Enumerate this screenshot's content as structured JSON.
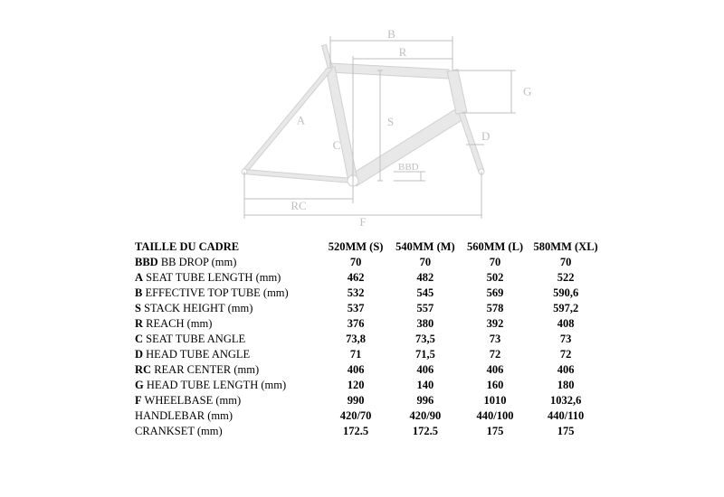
{
  "diagram": {
    "stroke": "#d0d0d0",
    "fill": "#e8e8e8",
    "dim_stroke": "#bfbfbf",
    "label_color": "#bfbfbf",
    "label_font": 13,
    "labels": {
      "A": "A",
      "B": "B",
      "C": "C",
      "D": "D",
      "F": "F",
      "G": "G",
      "R": "R",
      "S": "S",
      "RC": "RC",
      "BBD": "BBD"
    }
  },
  "table": {
    "header_label": "TAILLE DU CADRE",
    "size_headers": [
      "520MM (S)",
      "540MM (M)",
      "560MM (L)",
      "580MM (XL)"
    ],
    "rows": [
      {
        "prefix": "BBD",
        "rest": " BB DROP (mm)",
        "vals": [
          "70",
          "70",
          "70",
          "70"
        ]
      },
      {
        "prefix": "A",
        "rest": " SEAT TUBE LENGTH (mm)",
        "vals": [
          "462",
          "482",
          "502",
          "522"
        ]
      },
      {
        "prefix": "B",
        "rest": " EFFECTIVE TOP TUBE (mm)",
        "vals": [
          "532",
          "545",
          "569",
          "590,6"
        ]
      },
      {
        "prefix": "S",
        "rest": " STACK HEIGHT (mm)",
        "vals": [
          "537",
          "557",
          "578",
          "597,2"
        ]
      },
      {
        "prefix": "R",
        "rest": " REACH (mm)",
        "vals": [
          "376",
          "380",
          "392",
          "408"
        ]
      },
      {
        "prefix": "C",
        "rest": " SEAT TUBE ANGLE",
        "vals": [
          "73,8",
          "73,5",
          "73",
          "73"
        ]
      },
      {
        "prefix": "D",
        "rest": " HEAD TUBE ANGLE",
        "vals": [
          "71",
          "71,5",
          "72",
          "72"
        ]
      },
      {
        "prefix": "RC",
        "rest": " REAR CENTER (mm)",
        "vals": [
          "406",
          "406",
          "406",
          "406"
        ]
      },
      {
        "prefix": "G",
        "rest": " HEAD TUBE LENGTH (mm)",
        "vals": [
          "120",
          "140",
          "160",
          "180"
        ]
      },
      {
        "prefix": "F",
        "rest": " WHEELBASE (mm)",
        "vals": [
          "990",
          "996",
          "1010",
          "1032,6"
        ]
      },
      {
        "prefix": "",
        "rest": "HANDLEBAR (mm)",
        "vals": [
          "420/70",
          "420/90",
          "440/100",
          "440/110"
        ]
      },
      {
        "prefix": "",
        "rest": "CRANKSET (mm)",
        "vals": [
          "172.5",
          "172.5",
          "175",
          "175"
        ]
      }
    ]
  }
}
